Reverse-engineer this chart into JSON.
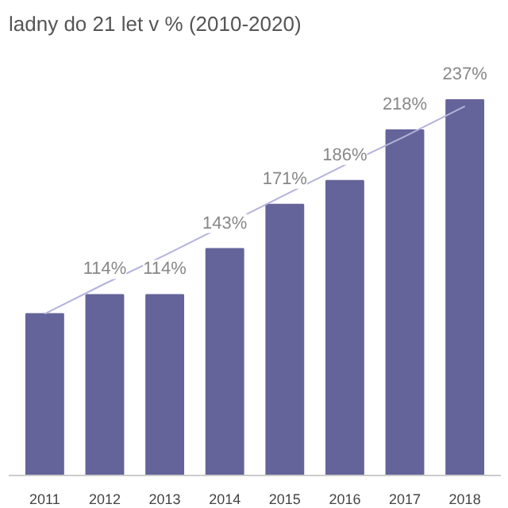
{
  "chart_data": {
    "type": "bar",
    "title": "ladny do 21 let v %  (2010-2020)",
    "categories": [
      "2011",
      "2012",
      "2013",
      "2014",
      "2015",
      "2016",
      "2017",
      "2018"
    ],
    "series": [
      {
        "color": "#64649a",
        "values": [
          102,
          114,
          114,
          143,
          171,
          186,
          218,
          237
        ],
        "value_labels": [
          null,
          "114%",
          "114%",
          "143%",
          "171%",
          "186%",
          "218%",
          "237%"
        ]
      },
      {
        "type": "line",
        "color": "#b4b2dc",
        "values": [
          102,
          121,
          139,
          158,
          177,
          196,
          214,
          233
        ]
      }
    ]
  }
}
